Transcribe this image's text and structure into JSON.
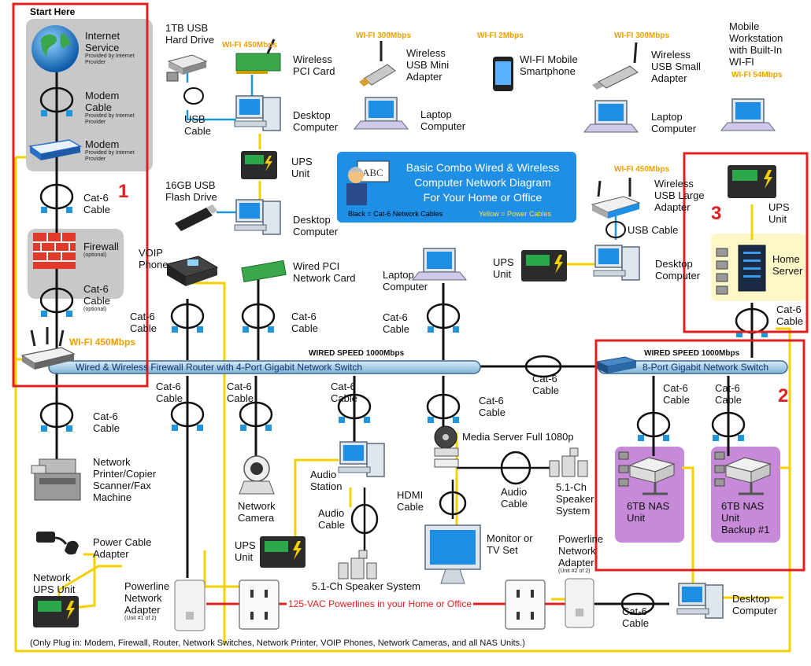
{
  "title": {
    "line1": "Basic Combo Wired & Wireless",
    "line2": "Computer Network Diagram",
    "line3": "For Your Home or Office",
    "legend_black": "Black = Cat-6 Network Cables",
    "legend_yellow": "Yellow = Power Cables",
    "abc_text": "ABC"
  },
  "start_here": "Start Here",
  "section_numbers": [
    "1",
    "2",
    "3"
  ],
  "provided_note": "Provided by Internet Provider",
  "labels": {
    "internet_service": "Internet Service",
    "modem_cable": "Modem Cable",
    "modem": "Modem",
    "cat6_cable": "Cat-6 Cable",
    "firewall": "Firewall",
    "optional": "(optional)",
    "hdd_1tb": "1TB USB Hard Drive",
    "usb_cable": "USB Cable",
    "wireless_pci": "Wireless PCI Card",
    "desktop_computer": "Desktop Computer",
    "ups_unit": "UPS Unit",
    "flash_16gb": "16GB USB Flash Drive",
    "voip_phone": "VOIP Phone",
    "wired_pci": "Wired PCI Network Card",
    "wireless_usb_mini": "Wireless USB Mini Adapter",
    "laptop_computer": "Laptop Computer",
    "wifi_mobile": "WI-FI Mobile Smartphone",
    "wireless_usb_small": "Wireless USB Small Adapter",
    "mobile_workstation": "Mobile Workstation with Built-In WI-FI",
    "wireless_usb_large": "Wireless USB Large Adapter",
    "usb_cable_inline": "USB Cable",
    "home_server": "Home Server",
    "network_printer": "Network Printer/Copier Scanner/Fax Machine",
    "network_camera": "Network Camera",
    "audio_station": "Audio Station",
    "audio_cable": "Audio Cable",
    "speaker_system_51": "5.1-Ch Speaker System",
    "speaker_system_51_right": "5.1-Ch Speaker System",
    "media_server": "Media Server Full 1080p",
    "hdmi_cable": "HDMI Cable",
    "monitor_tv": "Monitor or TV Set",
    "nas_6tb": "6TB NAS Unit",
    "nas_6tb_backup": "6TB NAS Unit Backup #1",
    "power_cable_adapter": "Power Cable Adapter",
    "network_ups_unit": "Network UPS Unit",
    "powerline_adapter": "Powerline Network Adapter",
    "unit1of2": "(Unit #1 of 2)",
    "unit2of2": "(Unit #2 of 2)"
  },
  "wifi": {
    "w450": "WI-FI 450Mbps",
    "w300": "WI-FI 300Mbps",
    "w2": "WI-FI 2Mbps",
    "w54": "WI-FI 54Mbps"
  },
  "wired_speed": "WIRED SPEED 1000Mbps",
  "router_bus": "Wired & Wireless Firewall Router with 4-Port Gigabit Network Switch",
  "switch_bus": "8-Port Gigabit Network Switch",
  "powerline_text": "125-VAC Powerlines in your Home or Office",
  "footnote": "(Only Plug in: Modem, Firewall, Router, Network Switches, Network Printer, VOIP Phones, Network Cameras, and all NAS Units.)",
  "colors": {
    "network_cable": "#111111",
    "power_cable": "#f5d000",
    "usb_cable": "#1e96dc",
    "powerline": "#e02020",
    "highlight_box": "#e02020",
    "bus_fill": "#a8d0ea",
    "nas_fill": "#c78ad8",
    "server_fill": "#fff7c8",
    "title_box": "#1f8fe6"
  }
}
